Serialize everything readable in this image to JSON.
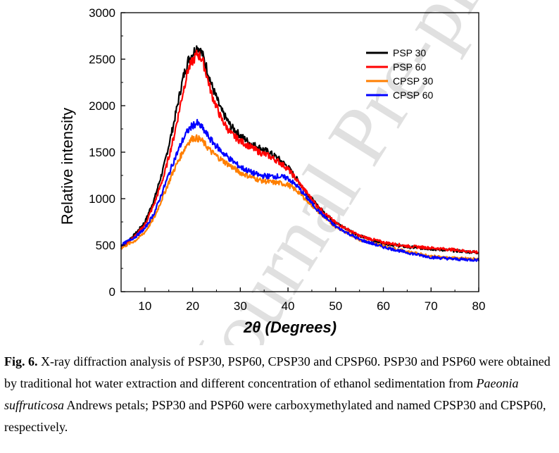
{
  "watermark": "Journal Pre-proof",
  "caption": {
    "label": "Fig. 6.",
    "part1": " X-ray diffraction analysis of PSP30, PSP60, CPSP30 and CPSP60. PSP30 and PSP60 were obtained by traditional hot water extraction and different concentration of ethanol sedimentation from ",
    "species": "Paeonia suffruticosa",
    "part2": " Andrews petals; PSP30 and PSP60 were carboxymethylated and named CPSP30 and CPSP60, respectively."
  },
  "chart_data": {
    "type": "line",
    "title": "",
    "xlabel": "2θ (Degrees)",
    "ylabel": "Relative intensity",
    "xlim": [
      5,
      80
    ],
    "ylim": [
      0,
      3000
    ],
    "xticks": [
      10,
      20,
      30,
      40,
      50,
      60,
      70,
      80
    ],
    "yticks": [
      0,
      500,
      1000,
      1500,
      2000,
      2500,
      3000
    ],
    "grid": false,
    "legend_position": "top-right",
    "x": [
      5,
      8,
      10,
      12,
      14,
      16,
      18,
      19,
      20,
      21,
      22,
      23,
      24,
      26,
      28,
      30,
      32,
      34,
      36,
      38,
      40,
      42,
      44,
      46,
      48,
      50,
      55,
      60,
      65,
      70,
      75,
      80
    ],
    "series": [
      {
        "name": "PSP 30",
        "color": "#000000",
        "values": [
          480,
          620,
          750,
          1000,
          1350,
          1800,
          2300,
          2480,
          2560,
          2640,
          2560,
          2400,
          2220,
          1950,
          1780,
          1680,
          1600,
          1550,
          1500,
          1430,
          1340,
          1200,
          1060,
          930,
          830,
          740,
          600,
          520,
          480,
          460,
          440,
          420
        ]
      },
      {
        "name": "PSP 60",
        "color": "#ff0000",
        "values": [
          470,
          600,
          720,
          950,
          1250,
          1650,
          2150,
          2380,
          2480,
          2560,
          2500,
          2320,
          2120,
          1860,
          1700,
          1620,
          1560,
          1500,
          1460,
          1400,
          1320,
          1190,
          1060,
          930,
          830,
          740,
          600,
          530,
          490,
          470,
          450,
          420
        ]
      },
      {
        "name": "CPSP 30",
        "color": "#ff7f00",
        "values": [
          470,
          550,
          640,
          800,
          1050,
          1300,
          1510,
          1600,
          1650,
          1650,
          1620,
          1560,
          1500,
          1420,
          1350,
          1280,
          1240,
          1200,
          1180,
          1170,
          1150,
          1080,
          980,
          880,
          780,
          700,
          560,
          490,
          430,
          380,
          360,
          350
        ]
      },
      {
        "name": "CPSP 60",
        "color": "#0000ff",
        "values": [
          500,
          590,
          680,
          850,
          1120,
          1400,
          1640,
          1730,
          1790,
          1810,
          1760,
          1690,
          1620,
          1510,
          1420,
          1340,
          1290,
          1250,
          1240,
          1240,
          1220,
          1130,
          1010,
          890,
          790,
          700,
          560,
          480,
          420,
          370,
          350,
          340
        ]
      }
    ]
  }
}
